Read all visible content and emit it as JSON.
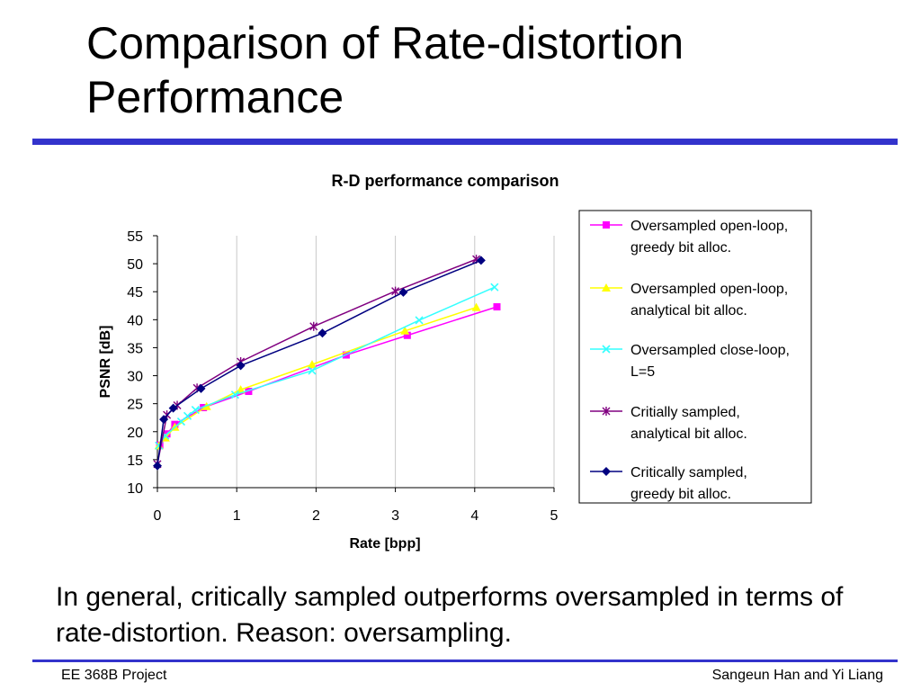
{
  "slide": {
    "title": "Comparison of Rate-distortion Performance",
    "summary": "In general, critically sampled outperforms oversampled in terms of rate-distortion. Reason: oversampling.",
    "footer_left": "EE 368B Project",
    "footer_right": "Sangeun Han and Yi Liang",
    "accent_color": "#3333cc"
  },
  "chart_data": {
    "type": "line",
    "title": "R-D performance comparison",
    "xlabel": "Rate [bpp]",
    "ylabel": "PSNR [dB]",
    "xlim": [
      0,
      5
    ],
    "ylim": [
      10,
      55
    ],
    "xticks": [
      0,
      1,
      2,
      3,
      4,
      5
    ],
    "yticks": [
      10,
      15,
      20,
      25,
      30,
      35,
      40,
      45,
      50,
      55
    ],
    "grid": "vertical",
    "legend_position": "right",
    "series": [
      {
        "name": "Oversampled open-loop, greedy bit alloc.",
        "color": "#ff00ff",
        "marker": "square",
        "points": [
          [
            0.03,
            17.6
          ],
          [
            0.12,
            19.6
          ],
          [
            0.22,
            21.3
          ],
          [
            0.58,
            24.3
          ],
          [
            1.15,
            27.2
          ],
          [
            2.38,
            33.7
          ],
          [
            3.15,
            37.2
          ],
          [
            4.28,
            42.3
          ]
        ]
      },
      {
        "name": "Oversampled open-loop, analytical bit alloc.",
        "color": "#ffff00",
        "marker": "triangle",
        "points": [
          [
            0.02,
            17.5
          ],
          [
            0.1,
            18.9
          ],
          [
            0.22,
            20.8
          ],
          [
            0.62,
            24.5
          ],
          [
            1.05,
            27.5
          ],
          [
            1.95,
            32.0
          ],
          [
            3.12,
            38.0
          ],
          [
            4.02,
            42.2
          ]
        ]
      },
      {
        "name": "Oversampled close-loop, L=5",
        "color": "#33ffff",
        "marker": "x",
        "points": [
          [
            0.02,
            17.5
          ],
          [
            0.1,
            19.3
          ],
          [
            0.3,
            21.8
          ],
          [
            0.38,
            22.8
          ],
          [
            0.48,
            23.9
          ],
          [
            0.98,
            26.6
          ],
          [
            1.95,
            30.9
          ],
          [
            3.3,
            39.9
          ],
          [
            4.25,
            45.8
          ]
        ]
      },
      {
        "name": "Critially sampled, analytical bit alloc.",
        "color": "#800080",
        "marker": "star",
        "points": [
          [
            0.0,
            14.2
          ],
          [
            0.12,
            23.0
          ],
          [
            0.25,
            24.7
          ],
          [
            0.5,
            27.8
          ],
          [
            1.05,
            32.5
          ],
          [
            1.97,
            38.8
          ],
          [
            3.0,
            45.1
          ],
          [
            4.02,
            50.8
          ]
        ]
      },
      {
        "name": "Critically sampled, greedy bit alloc.",
        "color": "#000080",
        "marker": "diamond",
        "points": [
          [
            0.0,
            13.9
          ],
          [
            0.08,
            22.2
          ],
          [
            0.2,
            24.2
          ],
          [
            0.55,
            27.7
          ],
          [
            1.05,
            31.8
          ],
          [
            2.08,
            37.6
          ],
          [
            3.1,
            44.9
          ],
          [
            4.08,
            50.6
          ]
        ]
      }
    ]
  }
}
